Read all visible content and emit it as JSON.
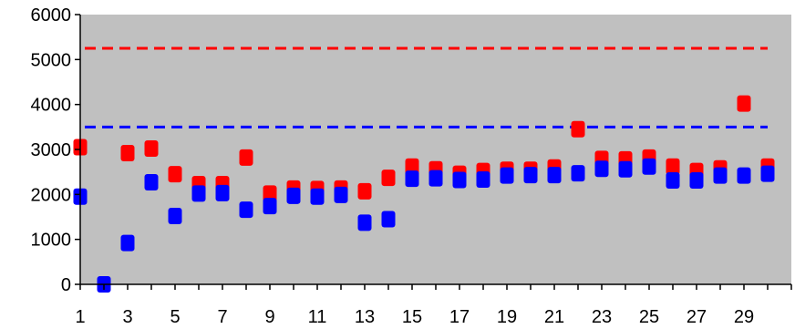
{
  "chart_data": {
    "type": "scatter",
    "title": "",
    "xlabel": "",
    "ylabel": "",
    "x": [
      1,
      2,
      3,
      4,
      5,
      6,
      7,
      8,
      9,
      10,
      11,
      12,
      13,
      14,
      15,
      16,
      17,
      18,
      19,
      20,
      21,
      22,
      23,
      24,
      25,
      26,
      27,
      28,
      29,
      30
    ],
    "x_tick_labels": [
      "1",
      "3",
      "5",
      "7",
      "9",
      "11",
      "13",
      "15",
      "17",
      "19",
      "21",
      "23",
      "25",
      "27",
      "29"
    ],
    "x_tick_values": [
      1,
      3,
      5,
      7,
      9,
      11,
      13,
      15,
      17,
      19,
      21,
      23,
      25,
      27,
      29
    ],
    "y_tick_labels": [
      "0",
      "1000",
      "2000",
      "3000",
      "4000",
      "5000",
      "6000"
    ],
    "y_tick_values": [
      0,
      1000,
      2000,
      3000,
      4000,
      5000,
      6000
    ],
    "ylim": [
      0,
      6000
    ],
    "xlim": [
      1,
      31
    ],
    "grid": false,
    "legend": "none",
    "plot_background": "#c0c0c0",
    "series": [
      {
        "color": "#ff0000",
        "marker": "square",
        "values": [
          3050,
          null,
          2920,
          3020,
          2450,
          2230,
          2230,
          2820,
          2020,
          2130,
          2120,
          2130,
          2070,
          2370,
          2620,
          2560,
          2460,
          2520,
          2550,
          2550,
          2600,
          3450,
          2790,
          2780,
          2820,
          2620,
          2520,
          2580,
          4020,
          2620
        ]
      },
      {
        "color": "#0000ff",
        "marker": "square",
        "values": [
          1950,
          0,
          920,
          2270,
          1520,
          2020,
          2030,
          1660,
          1740,
          1970,
          1950,
          1990,
          1370,
          1450,
          2350,
          2360,
          2320,
          2330,
          2420,
          2430,
          2430,
          2470,
          2570,
          2560,
          2620,
          2310,
          2310,
          2420,
          2420,
          2460
        ]
      }
    ],
    "reference_lines": [
      {
        "color": "#ff0000",
        "style": "dashed",
        "value": 5250
      },
      {
        "color": "#0000ff",
        "style": "dashed",
        "value": 3500
      }
    ]
  }
}
